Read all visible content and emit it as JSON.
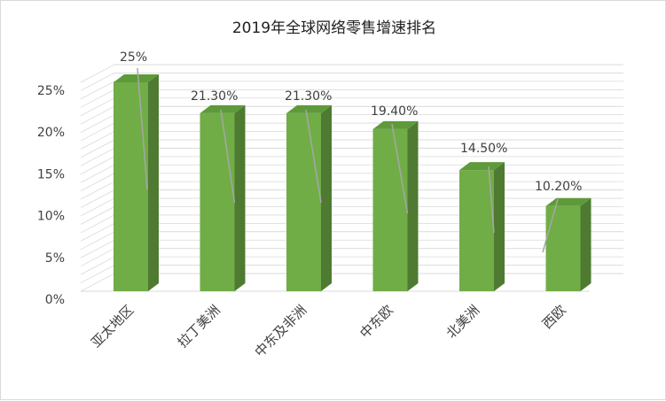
{
  "chart_data": {
    "type": "bar",
    "title": "2019年全球网络零售增速排名",
    "categories": [
      "亚太地区",
      "拉丁美洲",
      "中东及非洲",
      "中东欧",
      "北美洲",
      "西欧"
    ],
    "values": [
      25,
      21.3,
      21.3,
      19.4,
      14.5,
      10.2
    ],
    "value_labels": [
      "25%",
      "21.30%",
      "21.30%",
      "19.40%",
      "14.50%",
      "10.20%"
    ],
    "y_ticks": [
      "0%",
      "5%",
      "10%",
      "15%",
      "20%",
      "25%"
    ],
    "ylim": [
      0,
      25
    ],
    "xlabel": "",
    "ylabel": "",
    "grid": true,
    "style": "3d-column",
    "colors": {
      "bar_front": "#70ad47",
      "bar_side": "#4e7a31",
      "bar_top": "#5f9a3a",
      "grid": "#d9d9d9",
      "leader": "#a6a6a6"
    }
  }
}
